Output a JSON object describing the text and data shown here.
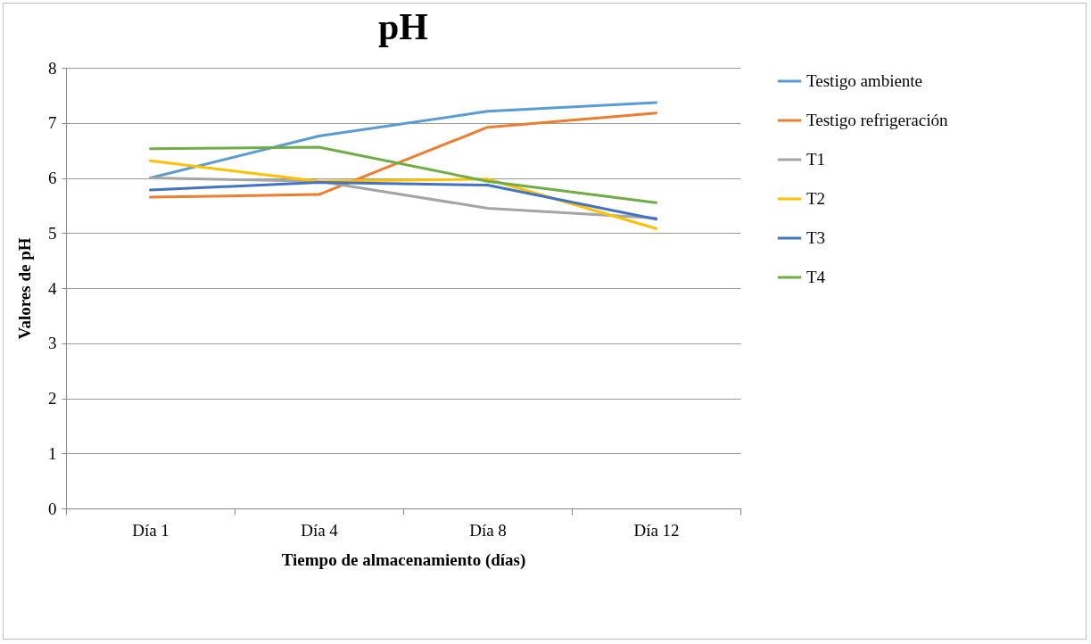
{
  "chart_data": {
    "type": "line",
    "title": "pH",
    "xlabel": "Tiempo de almacenamiento (días)",
    "ylabel": "Valores de pH",
    "categories": [
      "Día 1",
      "Día 4",
      "Día 8",
      "Día 12"
    ],
    "series": [
      {
        "name": "Testigo ambiente",
        "color": "#5b9bd5",
        "values": [
          6.0,
          6.76,
          7.21,
          7.37
        ]
      },
      {
        "name": "Testigo refrigeración",
        "color": "#ed7d31",
        "values": [
          5.65,
          5.7,
          6.92,
          7.18
        ]
      },
      {
        "name": "T1",
        "color": "#a5a5a5",
        "values": [
          6.0,
          5.94,
          5.45,
          5.27
        ]
      },
      {
        "name": "T2",
        "color": "#ffc000",
        "values": [
          6.31,
          5.94,
          5.98,
          5.08
        ]
      },
      {
        "name": "T3",
        "color": "#4472c4",
        "values": [
          5.78,
          5.92,
          5.87,
          5.25
        ]
      },
      {
        "name": "T4",
        "color": "#70ad47",
        "values": [
          6.53,
          6.56,
          5.94,
          5.55
        ]
      }
    ],
    "ylim": [
      0,
      8
    ],
    "yticks": [
      0,
      1,
      2,
      3,
      4,
      5,
      6,
      7,
      8
    ],
    "grid": "y",
    "legend": "right",
    "marker": "none",
    "line_style": "solid"
  }
}
